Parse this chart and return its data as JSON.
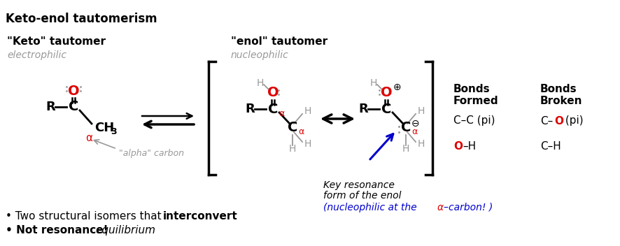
{
  "title": "Keto-enol tautomerism",
  "bg": "#ffffff",
  "red": "#dd0000",
  "blue": "#0000cc",
  "gray": "#999999",
  "black": "#000000",
  "keto_label": "\"Keto\" tautomer",
  "keto_sub": "electrophilic",
  "enol_label": "\"enol\" tautomer",
  "enol_sub": "nucleophilic",
  "bf_title": "Bonds\nFormed",
  "bb_title": "Bonds\nBroken",
  "row1_bf": "C–C (pi)",
  "row1_bb_pre": "C–",
  "row1_bb_O": "O",
  "row1_bb_post": " (pi)",
  "row2_bf_O": "O",
  "row2_bf_post": "–H",
  "row2_bb": "C–H",
  "b1_pre": "• Two structural isomers that ",
  "b1_bold": "interconvert",
  "b2_bold": "• Not resonance!  ",
  "b2_italic": "equilibrium",
  "key_text1": "Key resonance",
  "key_text2": "form of the enol",
  "nucl_pre": "(nucleophilic at the ",
  "nucl_alpha": "α",
  "nucl_post": "–carbon! )"
}
